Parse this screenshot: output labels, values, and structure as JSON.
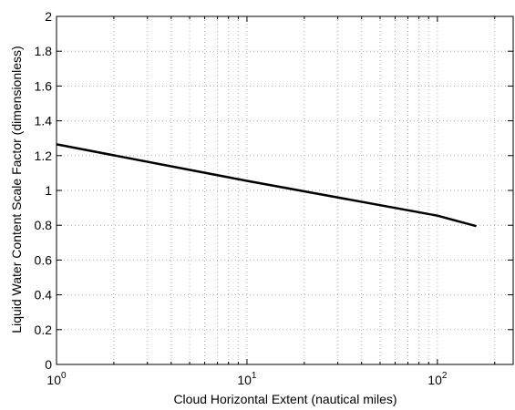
{
  "chart_data": {
    "type": "line",
    "title": "",
    "xlabel": "Cloud Horizontal Extent (nautical miles)",
    "ylabel": "Liquid Water Content Scale Factor (dimensionless)",
    "xscale": "log",
    "xlim": [
      1,
      250
    ],
    "ylim": [
      0,
      2
    ],
    "grid": true,
    "x_ticks": [
      {
        "value": 1,
        "base": "10",
        "exp": "0"
      },
      {
        "value": 10,
        "base": "10",
        "exp": "1"
      },
      {
        "value": 100,
        "base": "10",
        "exp": "2"
      }
    ],
    "y_ticks": [
      "0",
      "0.2",
      "0.4",
      "0.6",
      "0.8",
      "1",
      "1.2",
      "1.4",
      "1.6",
      "1.8",
      "2"
    ],
    "series": [
      {
        "color": "#000000",
        "x": [
          1,
          10,
          100,
          160
        ],
        "y": [
          1.265,
          1.055,
          0.855,
          0.795
        ]
      }
    ]
  }
}
